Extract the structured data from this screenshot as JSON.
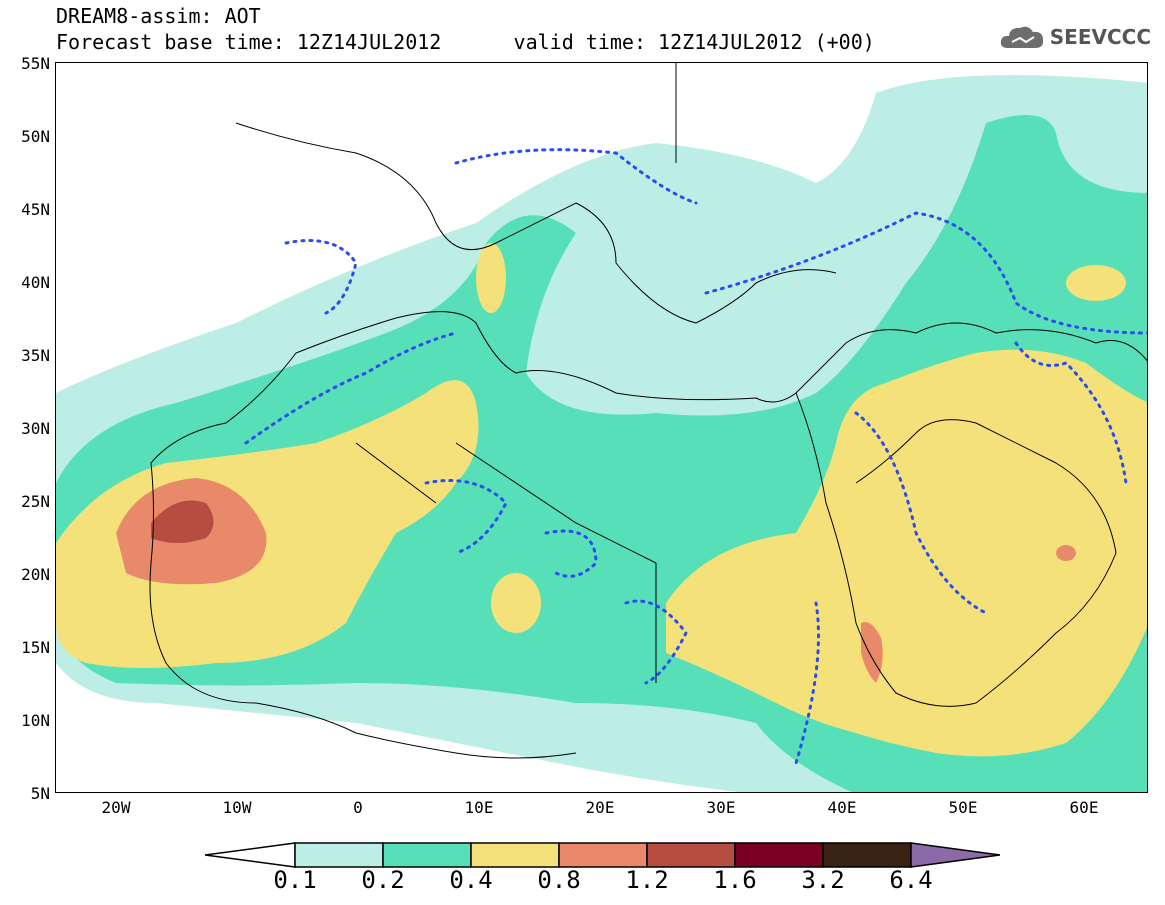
{
  "header": {
    "title": "DREAM8-assim: AOT",
    "forecast_line": "Forecast base time: 12Z14JUL2012      valid time: 12Z14JUL2012 (+00)"
  },
  "logo": {
    "text": "SEEVCCC",
    "icon": "cloud-icon"
  },
  "map": {
    "lat_labels": [
      "55N",
      "50N",
      "45N",
      "40N",
      "35N",
      "30N",
      "25N",
      "20N",
      "15N",
      "10N",
      "5N"
    ],
    "lon_labels": [
      "20W",
      "10W",
      "0",
      "10E",
      "20E",
      "30E",
      "40E",
      "50E",
      "60E"
    ],
    "extent": {
      "lon_min": -25,
      "lon_max": 65,
      "lat_min": 5,
      "lat_max": 55
    }
  },
  "colorbar": {
    "labels": [
      "0.1",
      "0.2",
      "0.4",
      "0.8",
      "1.2",
      "1.6",
      "3.2",
      "6.4"
    ],
    "colors": [
      "#ffffff",
      "#bdeee6",
      "#57e0b7",
      "#f5e17a",
      "#e8896a",
      "#b64d40",
      "#7a0022",
      "#3a2214",
      "#8c6aa8"
    ]
  }
}
